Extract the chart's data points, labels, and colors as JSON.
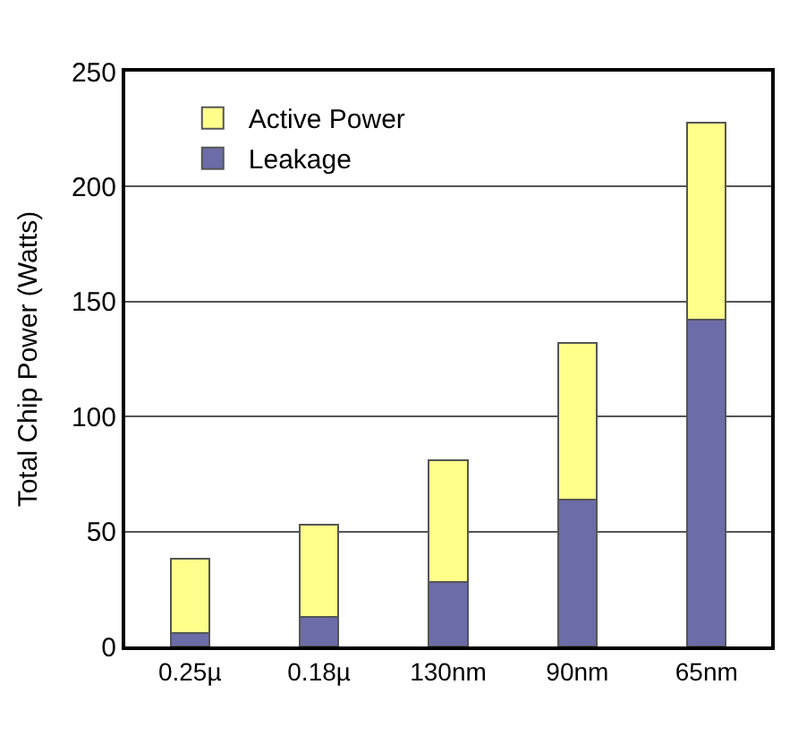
{
  "chart_data": {
    "type": "bar",
    "stacked": true,
    "ylabel": "Total Chip Power (Watts)",
    "categories": [
      "0.25µ",
      "0.18µ",
      "130nm",
      "90nm",
      "65nm"
    ],
    "series": [
      {
        "name": "Leakage",
        "color": "#6c6ca8",
        "values": [
          6,
          13,
          28,
          64,
          142
        ]
      },
      {
        "name": "Active Power",
        "color": "#ffff8c",
        "values": [
          32,
          40,
          53,
          68,
          86
        ]
      }
    ],
    "ylim": [
      0,
      250
    ],
    "yticks": [
      0,
      50,
      100,
      150,
      200,
      250
    ],
    "grid": "y",
    "legend": "top left"
  }
}
